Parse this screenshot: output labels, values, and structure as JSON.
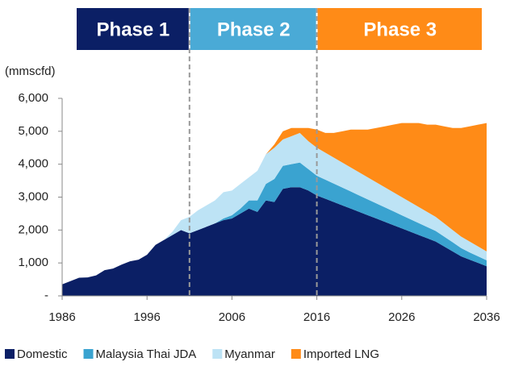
{
  "chart_data": {
    "type": "stacked_area",
    "unit_label": "(mmscfd)",
    "phases": [
      {
        "label": "Phase 1",
        "color": "#0b1f65",
        "end": 2001
      },
      {
        "label": "Phase 2",
        "color": "#4aaad6",
        "end": 2016
      },
      {
        "label": "Phase 3",
        "color": "#ff8b17"
      }
    ],
    "x": [
      1986,
      1987,
      1988,
      1989,
      1990,
      1991,
      1992,
      1993,
      1994,
      1995,
      1996,
      1997,
      1998,
      1999,
      2000,
      2001,
      2002,
      2003,
      2004,
      2005,
      2006,
      2007,
      2008,
      2009,
      2010,
      2011,
      2012,
      2013,
      2014,
      2015,
      2016,
      2017,
      2018,
      2019,
      2020,
      2021,
      2022,
      2023,
      2024,
      2025,
      2026,
      2027,
      2028,
      2029,
      2030,
      2031,
      2032,
      2033,
      2034,
      2035,
      2036
    ],
    "series": [
      {
        "name": "Domestic",
        "color": "#0b1f65",
        "values": [
          350,
          450,
          550,
          560,
          620,
          780,
          830,
          950,
          1050,
          1100,
          1250,
          1550,
          1700,
          1850,
          2000,
          1900,
          2000,
          2100,
          2200,
          2300,
          2350,
          2500,
          2650,
          2550,
          2900,
          2850,
          3250,
          3300,
          3300,
          3200,
          3050,
          2950,
          2850,
          2750,
          2650,
          2550,
          2450,
          2350,
          2250,
          2150,
          2050,
          1950,
          1850,
          1750,
          1650,
          1500,
          1350,
          1200,
          1100,
          1000,
          900
        ]
      },
      {
        "name": "Malaysia Thai JDA",
        "color": "#3aa3d0",
        "values": [
          0,
          0,
          0,
          0,
          0,
          0,
          0,
          0,
          0,
          0,
          0,
          0,
          0,
          0,
          0,
          0,
          0,
          0,
          0,
          50,
          100,
          150,
          250,
          350,
          500,
          700,
          700,
          700,
          750,
          650,
          600,
          580,
          560,
          540,
          520,
          500,
          480,
          460,
          440,
          420,
          400,
          380,
          360,
          340,
          320,
          300,
          280,
          250,
          220,
          200,
          180
        ]
      },
      {
        "name": "Myanmar",
        "color": "#bde3f5",
        "values": [
          0,
          0,
          0,
          0,
          0,
          0,
          0,
          0,
          0,
          0,
          0,
          0,
          0,
          100,
          300,
          500,
          600,
          650,
          700,
          800,
          750,
          750,
          700,
          900,
          900,
          950,
          800,
          850,
          900,
          850,
          850,
          820,
          790,
          760,
          730,
          700,
          670,
          640,
          610,
          580,
          550,
          520,
          490,
          460,
          430,
          400,
          370,
          350,
          330,
          300,
          270
        ]
      },
      {
        "name": "Imported LNG",
        "color": "#ff8b17",
        "values": [
          0,
          0,
          0,
          0,
          0,
          0,
          0,
          0,
          0,
          0,
          0,
          0,
          0,
          0,
          0,
          0,
          0,
          0,
          0,
          0,
          0,
          0,
          0,
          0,
          0,
          100,
          250,
          250,
          150,
          400,
          550,
          600,
          750,
          950,
          1150,
          1300,
          1450,
          1650,
          1850,
          2050,
          2250,
          2400,
          2550,
          2650,
          2800,
          2950,
          3100,
          3300,
          3500,
          3700,
          3900
        ]
      }
    ],
    "xlim": [
      1986,
      2036
    ],
    "xticks": [
      1986,
      1996,
      2006,
      2016,
      2026,
      2036
    ],
    "ylim": [
      0,
      6000
    ],
    "yticks": [
      {
        "value": 0,
        "label": "-"
      },
      {
        "value": 1000,
        "label": "1,000"
      },
      {
        "value": 2000,
        "label": "2,000"
      },
      {
        "value": 3000,
        "label": "3,000"
      },
      {
        "value": 4000,
        "label": "4,000"
      },
      {
        "value": 5000,
        "label": "5,000"
      },
      {
        "value": 6000,
        "label": "6,000"
      }
    ],
    "legend": "bottom"
  }
}
